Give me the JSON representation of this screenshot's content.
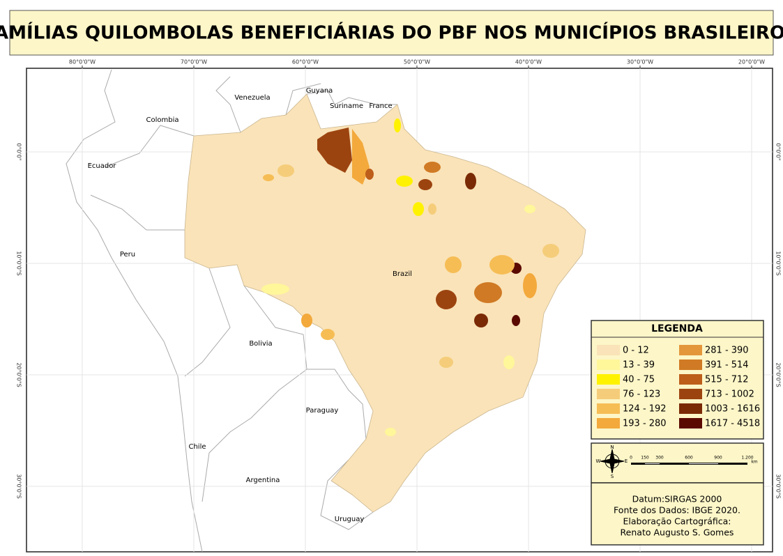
{
  "title": "FAMÍLIAS QUILOMBOLAS BENEFICIÁRIAS DO PBF NOS MUNICÍPIOS BRASILEIROS",
  "map": {
    "longitude_labels": [
      "80°0'0\"W",
      "70°0'0\"W",
      "60°0'0\"W",
      "50°0'0\"W",
      "40°0'0\"W",
      "30°0'0\"W",
      "20°0'0\"W"
    ],
    "latitude_labels": [
      "0°0'0\"",
      "10°0'0\"S",
      "20°0'0\"S",
      "30°0'0\"S"
    ],
    "countries": [
      "Venezuela",
      "Guyana",
      "Suriname",
      "France",
      "Colombia",
      "Ecuador",
      "Peru",
      "Brazil",
      "Bolivia",
      "Paraguay",
      "Chile",
      "Argentina",
      "Uruguay"
    ]
  },
  "legend": {
    "title": "LEGENDA",
    "classes": [
      {
        "label": "0 - 12",
        "color": "#fae3b8"
      },
      {
        "label": "13 - 39",
        "color": "#fff79a"
      },
      {
        "label": "40 - 75",
        "color": "#fff200"
      },
      {
        "label": "76 - 123",
        "color": "#f5cd7a"
      },
      {
        "label": "124 - 192",
        "color": "#f6bd55"
      },
      {
        "label": "193 - 280",
        "color": "#f3a93c"
      },
      {
        "label": "281 - 390",
        "color": "#e3963a"
      },
      {
        "label": "391 - 514",
        "color": "#d07a25"
      },
      {
        "label": "515 - 712",
        "color": "#bd5e1a"
      },
      {
        "label": "713 - 1002",
        "color": "#9c4410"
      },
      {
        "label": "1003 - 1616",
        "color": "#7a2a05"
      },
      {
        "label": "1617 - 4518",
        "color": "#5b0a00"
      }
    ]
  },
  "scale_bar": {
    "labels": [
      "0",
      "150",
      "300",
      "600",
      "900",
      "1.200"
    ],
    "unit": "km"
  },
  "compass": {
    "n": "N",
    "s": "S",
    "e": "E",
    "w": "W"
  },
  "credits": [
    "Datum:SIRGAS 2000",
    "Fonte dos Dados: IBGE 2020.",
    "Elaboração Cartográfica:",
    "Renato Augusto S. Gomes"
  ]
}
